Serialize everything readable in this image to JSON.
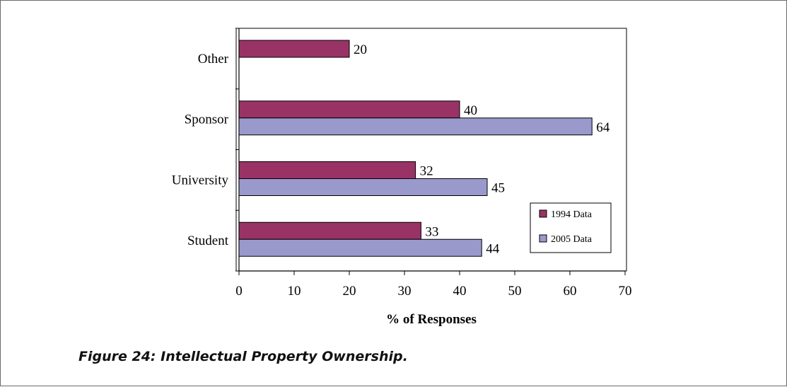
{
  "caption": "Figure 24: Intellectual Property Ownership.",
  "chart_data": {
    "type": "bar",
    "orientation": "horizontal",
    "categories": [
      "Other",
      "Sponsor",
      "University",
      "Student"
    ],
    "series": [
      {
        "name": "1994 Data",
        "color": "#993366",
        "values": [
          20,
          40,
          32,
          33
        ]
      },
      {
        "name": "2005 Data",
        "color": "#9999cc",
        "values": [
          null,
          64,
          45,
          44
        ]
      }
    ],
    "xlabel": "% of Responses",
    "xlim": [
      0,
      70
    ],
    "xticks": [
      0,
      10,
      20,
      30,
      40,
      50,
      60,
      70
    ],
    "grid": false,
    "legend_position": "bottom-right"
  }
}
